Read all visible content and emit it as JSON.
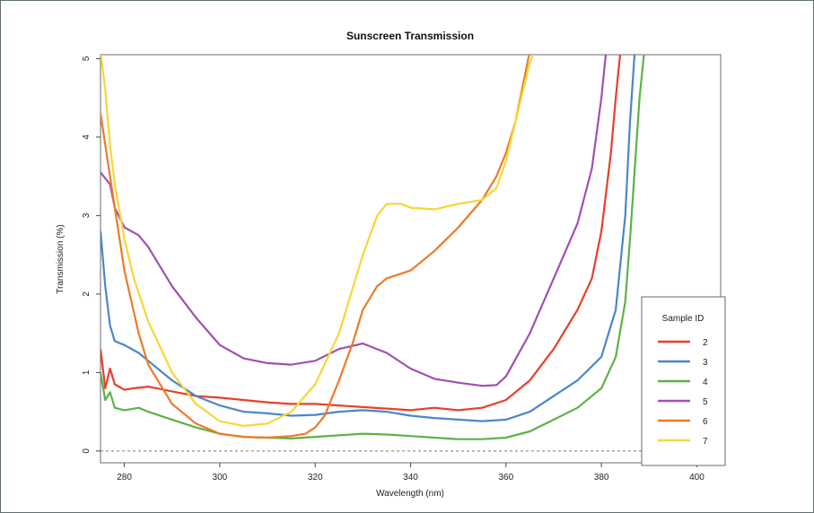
{
  "chart_data": {
    "type": "line",
    "title": "Sunscreen Transmission",
    "xlabel": "Wavelength (nm)",
    "ylabel": "Transmission (%)",
    "xlim": [
      275,
      405
    ],
    "ylim": [
      -0.15,
      5.05
    ],
    "xticks": [
      280,
      300,
      320,
      340,
      360,
      380,
      400
    ],
    "yticks": [
      0,
      1,
      2,
      3,
      4,
      5
    ],
    "reference_line": {
      "y": 0,
      "style": "dashed"
    },
    "legend": {
      "title": "Sample ID",
      "placement": "right"
    },
    "grid": false,
    "series": [
      {
        "name": "2",
        "color": "#e8402c",
        "x": [
          275,
          276,
          277,
          278,
          280,
          282,
          285,
          290,
          295,
          300,
          305,
          310,
          315,
          320,
          325,
          330,
          335,
          340,
          345,
          350,
          355,
          360,
          365,
          370,
          375,
          378,
          380,
          382,
          383,
          384
        ],
        "y": [
          1.3,
          0.8,
          1.05,
          0.85,
          0.78,
          0.8,
          0.82,
          0.76,
          0.7,
          0.68,
          0.65,
          0.62,
          0.6,
          0.6,
          0.58,
          0.56,
          0.54,
          0.52,
          0.55,
          0.52,
          0.55,
          0.65,
          0.9,
          1.3,
          1.8,
          2.2,
          2.8,
          3.8,
          4.5,
          5.1
        ]
      },
      {
        "name": "3",
        "color": "#4c86c8",
        "x": [
          275,
          276,
          277,
          278,
          280,
          283,
          285,
          290,
          295,
          300,
          305,
          310,
          315,
          320,
          325,
          330,
          335,
          340,
          345,
          350,
          355,
          360,
          365,
          370,
          375,
          380,
          383,
          385,
          386,
          387
        ],
        "y": [
          2.8,
          2.1,
          1.6,
          1.4,
          1.35,
          1.25,
          1.15,
          0.9,
          0.7,
          0.58,
          0.5,
          0.48,
          0.45,
          0.46,
          0.5,
          0.52,
          0.5,
          0.45,
          0.42,
          0.4,
          0.38,
          0.4,
          0.5,
          0.7,
          0.9,
          1.2,
          1.8,
          3.0,
          4.2,
          5.1
        ]
      },
      {
        "name": "4",
        "color": "#5bb346",
        "x": [
          275,
          276,
          277,
          278,
          280,
          283,
          285,
          290,
          295,
          300,
          305,
          310,
          315,
          320,
          325,
          330,
          335,
          340,
          345,
          350,
          355,
          360,
          365,
          370,
          375,
          380,
          383,
          385,
          386,
          387,
          388,
          389
        ],
        "y": [
          1.0,
          0.65,
          0.75,
          0.55,
          0.52,
          0.55,
          0.5,
          0.4,
          0.3,
          0.22,
          0.18,
          0.17,
          0.16,
          0.18,
          0.2,
          0.22,
          0.21,
          0.19,
          0.17,
          0.15,
          0.15,
          0.17,
          0.25,
          0.4,
          0.55,
          0.8,
          1.2,
          1.9,
          2.7,
          3.6,
          4.5,
          5.1
        ]
      },
      {
        "name": "5",
        "color": "#a050b0",
        "x": [
          275,
          277,
          278,
          280,
          283,
          285,
          290,
          295,
          300,
          305,
          310,
          315,
          320,
          325,
          330,
          335,
          340,
          345,
          350,
          355,
          358,
          360,
          365,
          370,
          375,
          378,
          380,
          381
        ],
        "y": [
          3.55,
          3.4,
          3.1,
          2.85,
          2.75,
          2.6,
          2.1,
          1.7,
          1.35,
          1.18,
          1.12,
          1.1,
          1.15,
          1.3,
          1.37,
          1.25,
          1.05,
          0.92,
          0.87,
          0.83,
          0.84,
          0.95,
          1.5,
          2.2,
          2.9,
          3.6,
          4.5,
          5.1
        ]
      },
      {
        "name": "6",
        "color": "#ee7a28",
        "x": [
          275,
          276,
          278,
          280,
          283,
          285,
          290,
          295,
          300,
          305,
          310,
          315,
          318,
          320,
          322,
          325,
          328,
          330,
          333,
          335,
          340,
          345,
          350,
          355,
          358,
          360,
          362,
          363,
          364,
          365
        ],
        "y": [
          4.3,
          3.9,
          3.1,
          2.3,
          1.5,
          1.1,
          0.6,
          0.35,
          0.22,
          0.18,
          0.17,
          0.19,
          0.22,
          0.3,
          0.45,
          0.9,
          1.4,
          1.8,
          2.1,
          2.2,
          2.3,
          2.55,
          2.85,
          3.2,
          3.5,
          3.8,
          4.2,
          4.5,
          4.8,
          5.1
        ]
      },
      {
        "name": "7",
        "color": "#f5d736",
        "x": [
          275,
          276,
          277,
          278,
          280,
          282,
          285,
          290,
          295,
          300,
          305,
          310,
          315,
          320,
          325,
          330,
          333,
          335,
          338,
          340,
          345,
          350,
          355,
          358,
          360,
          362,
          364,
          365,
          366
        ],
        "y": [
          5.1,
          4.6,
          3.9,
          3.4,
          2.7,
          2.2,
          1.65,
          1.0,
          0.6,
          0.38,
          0.32,
          0.35,
          0.5,
          0.85,
          1.5,
          2.5,
          3.0,
          3.15,
          3.15,
          3.1,
          3.08,
          3.15,
          3.2,
          3.35,
          3.7,
          4.2,
          4.7,
          4.95,
          5.1
        ]
      }
    ]
  }
}
